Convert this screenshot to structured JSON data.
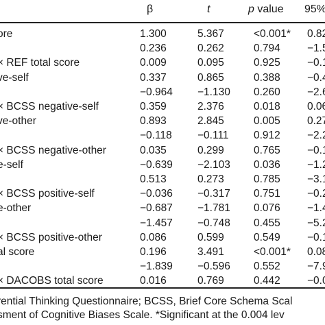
{
  "header": {
    "beta": "β",
    "t": "t",
    "p_italic": "p",
    "p_rest": " value",
    "ci": "95%"
  },
  "rows": [
    {
      "label": "ore",
      "beta": "1.300",
      "t": "5.367",
      "p": "<0.001*",
      "ci": "0.82–"
    },
    {
      "label": "",
      "beta": "0.236",
      "t": "0.262",
      "p": "0.794",
      "ci": "−1.5"
    },
    {
      "label": "× REF total score",
      "beta": "0.009",
      "t": "0.095",
      "p": "0.925",
      "ci": "−0.1"
    },
    {
      "label": "ve-self",
      "beta": "0.337",
      "t": "0.865",
      "p": "0.388",
      "ci": "−0.4"
    },
    {
      "label": "",
      "beta": "−0.964",
      "t": "−1.130",
      "p": "0.260",
      "ci": "−2.6"
    },
    {
      "label": "× BCSS negative-self",
      "beta": "0.359",
      "t": "2.376",
      "p": "0.018",
      "ci": "0.06"
    },
    {
      "label": "ve-other",
      "beta": "0.893",
      "t": "2.845",
      "p": "0.005",
      "ci": "0.27"
    },
    {
      "label": "",
      "beta": "−0.118",
      "t": "−0.111",
      "p": "0.912",
      "ci": "−2.2"
    },
    {
      "label": "× BCSS negative-other",
      "beta": "0.035",
      "t": "0.299",
      "p": "0.765",
      "ci": "−0.1"
    },
    {
      "label": "e-self",
      "beta": "−0.639",
      "t": "−2.103",
      "p": "0.036",
      "ci": "−1.2"
    },
    {
      "label": "",
      "beta": "0.513",
      "t": "0.273",
      "p": "0.785",
      "ci": "−3.1"
    },
    {
      "label": "× BCSS positive-self",
      "beta": "−0.036",
      "t": "−0.317",
      "p": "0.751",
      "ci": "−0.2"
    },
    {
      "label": "e-other",
      "beta": "−0.687",
      "t": "−1.781",
      "p": "0.076",
      "ci": "−1.4"
    },
    {
      "label": "",
      "beta": "−1.457",
      "t": "−0.748",
      "p": "0.455",
      "ci": "−5.2"
    },
    {
      "label": "× BCSS positive-other",
      "beta": "0.086",
      "t": "0.599",
      "p": "0.549",
      "ci": "−0.1"
    },
    {
      "label": "al score",
      "beta": "0.196",
      "t": "3.491",
      "p": "<0.001*",
      "ci": "0.08"
    },
    {
      "label": "",
      "beta": "−1.839",
      "t": "−0.596",
      "p": "0.552",
      "ci": "−7.9"
    },
    {
      "label": "× DACOBS total score",
      "beta": "0.016",
      "t": "0.769",
      "p": "0.442",
      "ci": "−0.0"
    }
  ],
  "footnote": {
    "line1": "rential Thinking Questionnaire; BCSS, Brief Core Schema Scal",
    "line2": "sment of Cognitive Biases Scale. *Significant at the 0.004 lev"
  }
}
